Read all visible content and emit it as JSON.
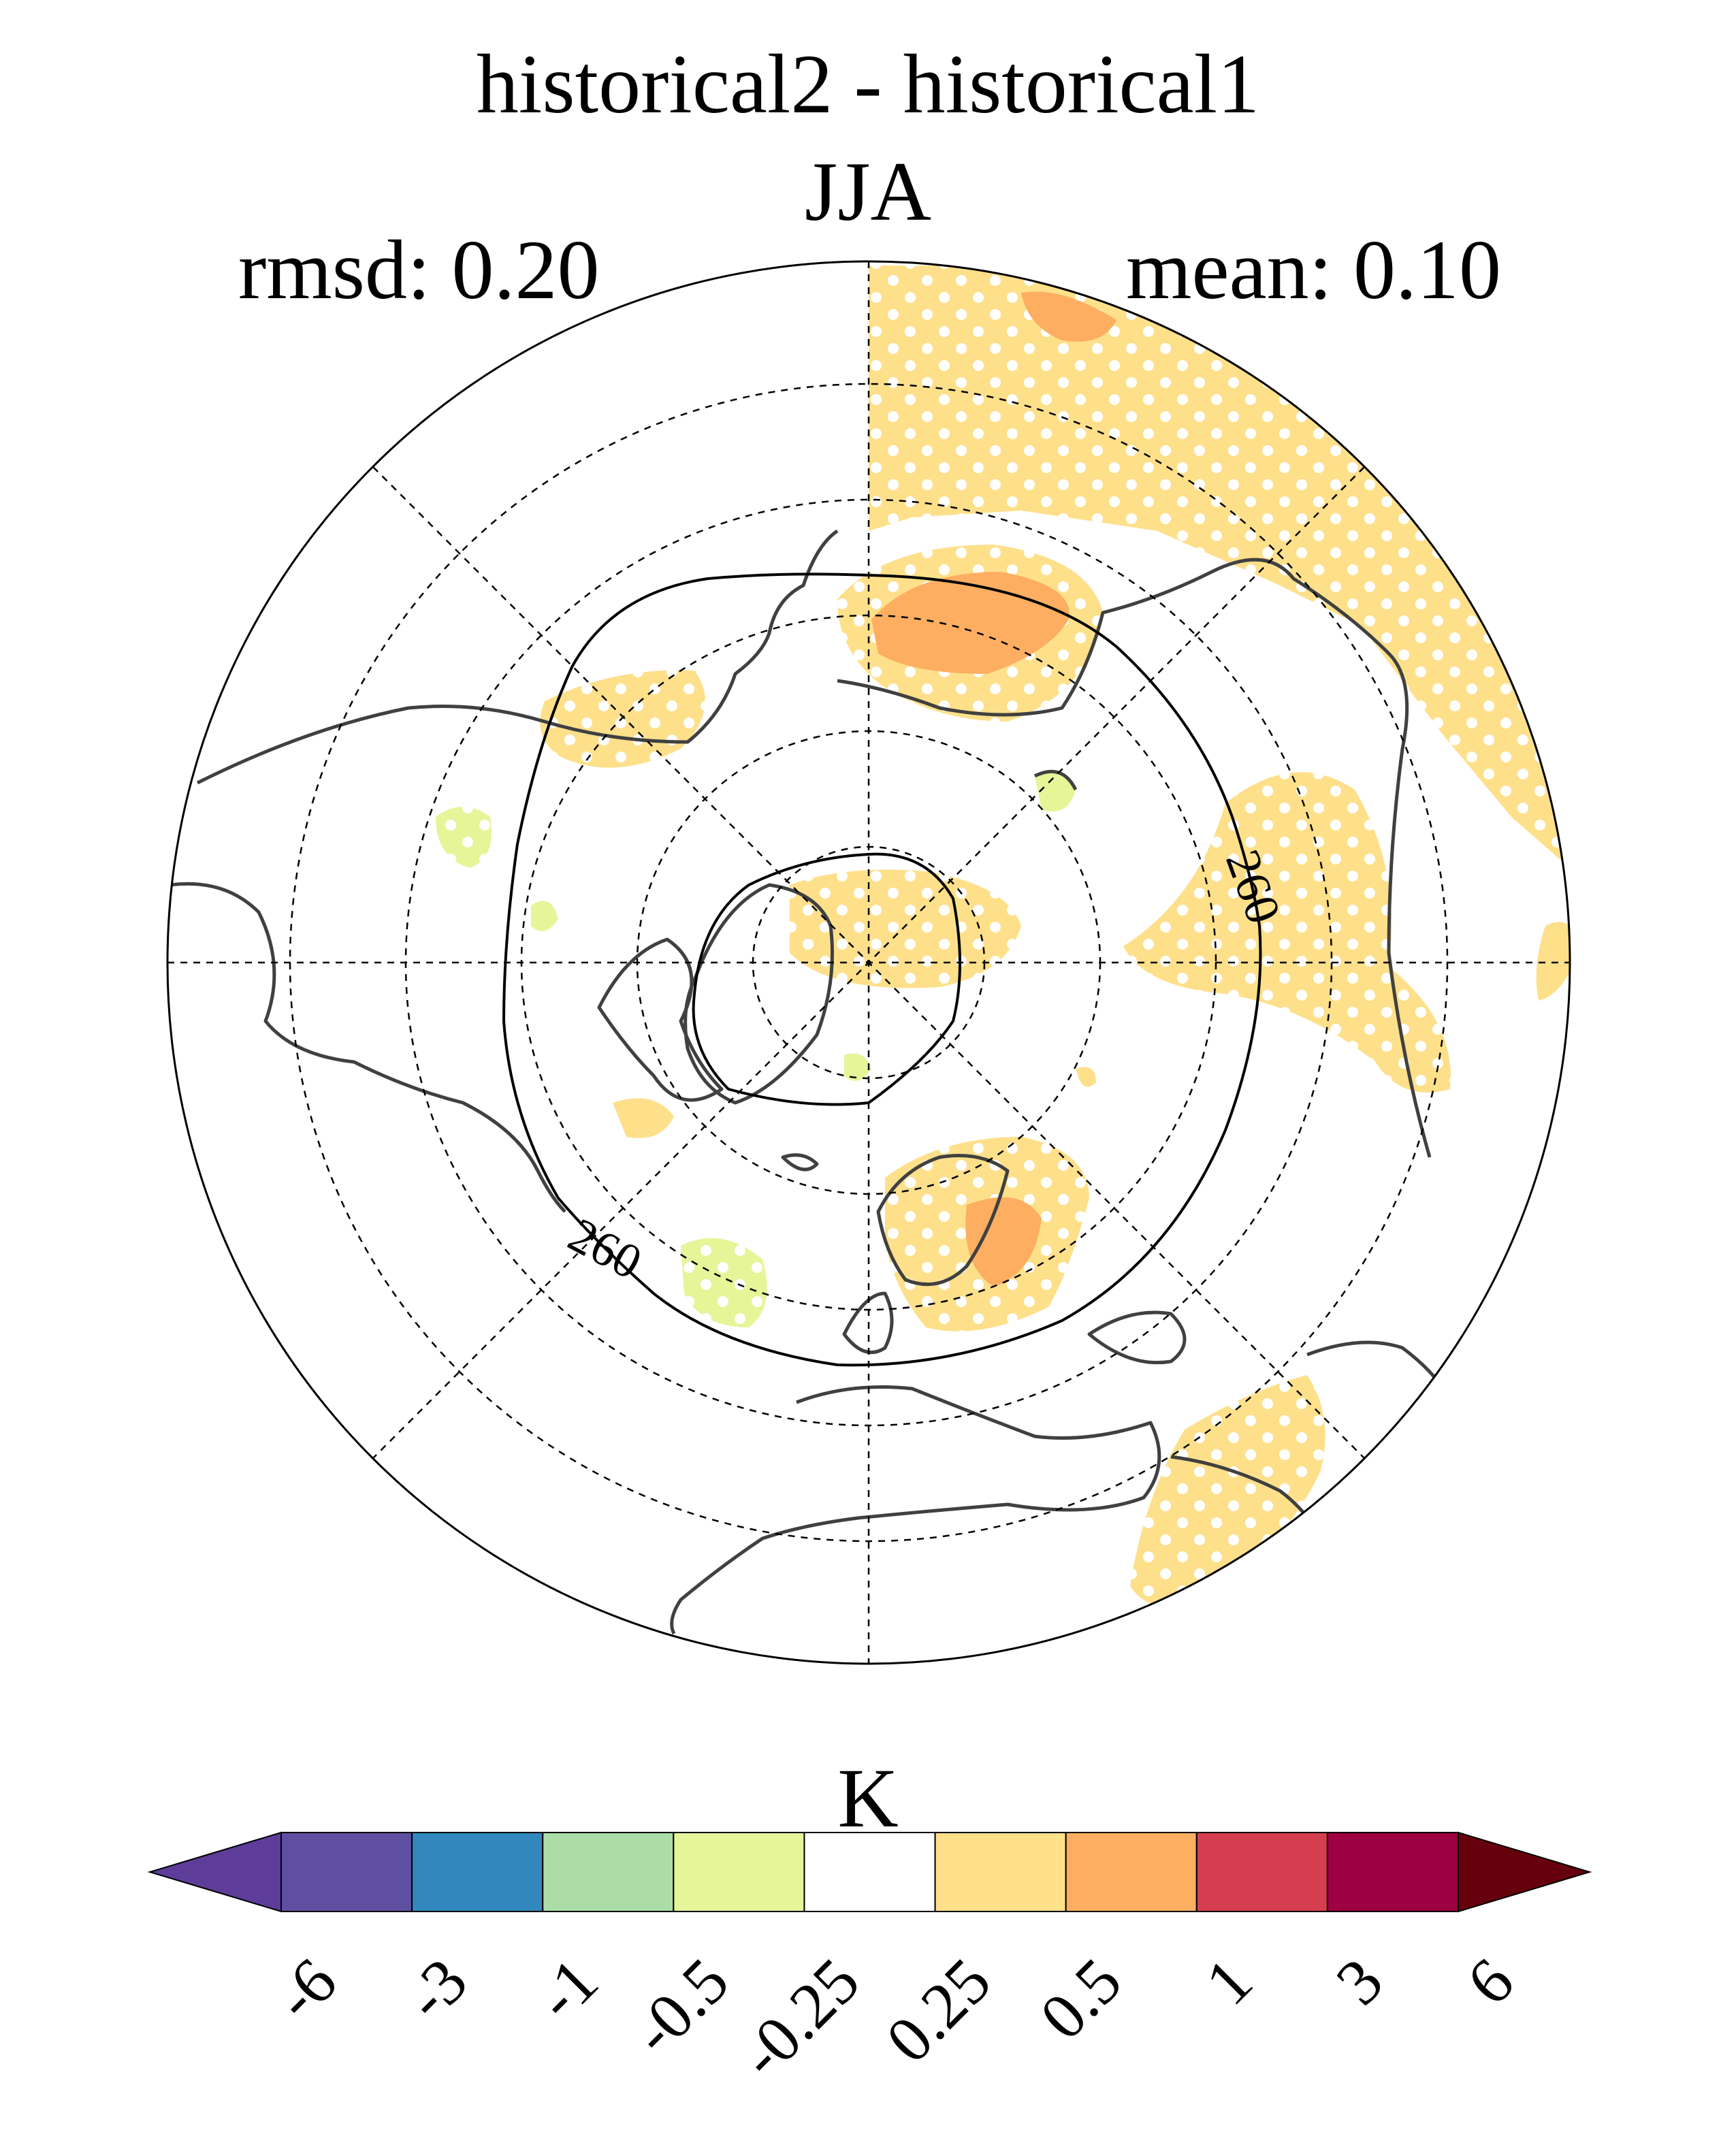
{
  "titles": {
    "line1": "historical2 - historical1",
    "line2": "JJA",
    "rmsd": "rmsd: 0.20",
    "mean": "mean: 0.10"
  },
  "map": {
    "projection": "north polar stereographic",
    "contour_label": "260",
    "contour_label_2": "260",
    "colors": {
      "light_orange": "#fee08b",
      "orange": "#fdae61",
      "light_green": "#e6f598",
      "coast": "#404040"
    }
  },
  "colorbar": {
    "unit": "K",
    "levels": [
      "-6",
      "-3",
      "-1",
      "-0.5",
      "-0.25",
      "0.25",
      "0.5",
      "1",
      "3",
      "6"
    ],
    "colors": [
      "#5e3c99",
      "#5e4fa2",
      "#3288bd",
      "#abdda4",
      "#e6f598",
      "#ffffff",
      "#fee08b",
      "#fdae61",
      "#d53e4f",
      "#9e0142",
      "#67000d"
    ]
  }
}
